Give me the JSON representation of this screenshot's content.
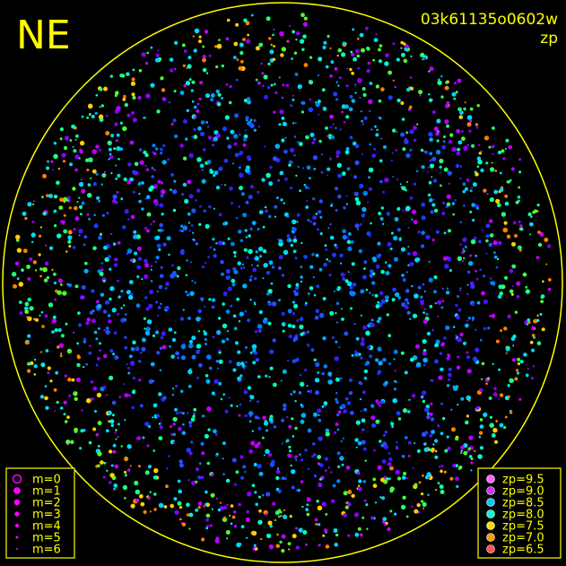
{
  "header": {
    "direction": "NE",
    "image_id": "03k61135o0602w",
    "color_by": "zp"
  },
  "magnitude_legend": {
    "color": "#ff00ff",
    "items": [
      "m=0",
      "m=1",
      "m=2",
      "m=3",
      "m=4",
      "m=5",
      "m=6"
    ]
  },
  "zp_legend": {
    "items": [
      {
        "label": "zp=9.5",
        "color": "#ff66ff"
      },
      {
        "label": "zp=9.0",
        "color": "#cc33ff"
      },
      {
        "label": "zp=8.5",
        "color": "#00ccff"
      },
      {
        "label": "zp=8.0",
        "color": "#00ffcc"
      },
      {
        "label": "zp=7.5",
        "color": "#ffdd00"
      },
      {
        "label": "zp=7.0",
        "color": "#ff9900"
      },
      {
        "label": "zp=6.5",
        "color": "#ff5555"
      }
    ]
  }
}
